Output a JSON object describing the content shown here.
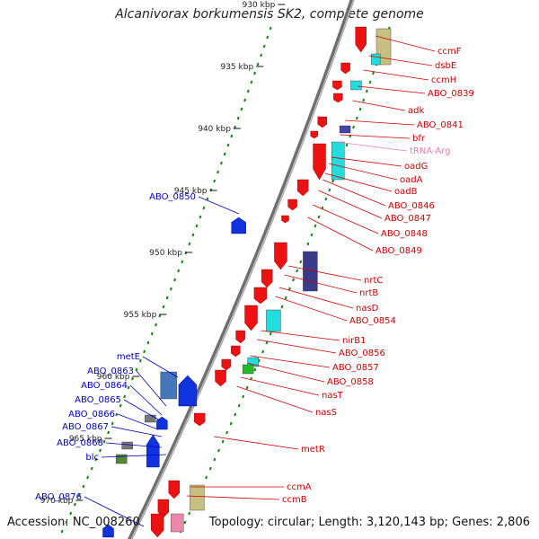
{
  "title": "Alcanivorax borkumensis SK2, complete genome",
  "accession": "Accession: NC_008260",
  "topology": "Topology: circular; Length: 3,120,143 bp; Genes: 2,806",
  "colors": {
    "backbone": "#808080",
    "forward_gene": "#ee1111",
    "reverse_gene": "#1133dd",
    "rna": "#ee88bb",
    "label_forward": "#cc0000",
    "label_reverse": "#0000bb",
    "label_rna": "#e080b0",
    "gc_dots": "#118811"
  },
  "ticks": [
    "930 kbp",
    "935 kbp",
    "940 kbp",
    "945 kbp",
    "950 kbp",
    "955 kbp",
    "960 kbp",
    "965 kbp",
    "970 kbp"
  ],
  "labels_right": [
    {
      "text": "ccmF",
      "type": "forward"
    },
    {
      "text": "dsbE",
      "type": "forward"
    },
    {
      "text": "ccmH",
      "type": "forward"
    },
    {
      "text": "ABO_0839",
      "type": "forward"
    },
    {
      "text": "adk",
      "type": "forward"
    },
    {
      "text": "ABO_0841",
      "type": "forward"
    },
    {
      "text": "bfr",
      "type": "forward"
    },
    {
      "text": "tRNA-Arg",
      "type": "rna"
    },
    {
      "text": "oadG",
      "type": "forward"
    },
    {
      "text": "oadA",
      "type": "forward"
    },
    {
      "text": "oadB",
      "type": "forward"
    },
    {
      "text": "ABO_0846",
      "type": "forward"
    },
    {
      "text": "ABO_0847",
      "type": "forward"
    },
    {
      "text": "ABO_0848",
      "type": "forward"
    },
    {
      "text": "ABO_0849",
      "type": "forward"
    },
    {
      "text": "nrtC",
      "type": "forward"
    },
    {
      "text": "nrtB",
      "type": "forward"
    },
    {
      "text": "nasD",
      "type": "forward"
    },
    {
      "text": "ABO_0854",
      "type": "forward"
    },
    {
      "text": "nirB1",
      "type": "forward"
    },
    {
      "text": "ABO_0856",
      "type": "forward"
    },
    {
      "text": "ABO_0857",
      "type": "forward"
    },
    {
      "text": "ABO_0858",
      "type": "forward"
    },
    {
      "text": "nasT",
      "type": "forward"
    },
    {
      "text": "nasS",
      "type": "forward"
    },
    {
      "text": "metR",
      "type": "forward"
    },
    {
      "text": "ccmA",
      "type": "forward"
    },
    {
      "text": "ccmB",
      "type": "forward"
    }
  ],
  "labels_left": [
    {
      "text": "ABO_0850",
      "type": "reverse"
    },
    {
      "text": "metE",
      "type": "reverse"
    },
    {
      "text": "ABO_0863",
      "type": "reverse"
    },
    {
      "text": "ABO_0864",
      "type": "reverse"
    },
    {
      "text": "ABO_0865",
      "type": "reverse"
    },
    {
      "text": "ABO_0866",
      "type": "reverse"
    },
    {
      "text": "ABO_0867",
      "type": "reverse"
    },
    {
      "text": "ABO_0868",
      "type": "reverse"
    },
    {
      "text": "blc",
      "type": "reverse"
    },
    {
      "text": "ABO_0876",
      "type": "reverse"
    }
  ]
}
